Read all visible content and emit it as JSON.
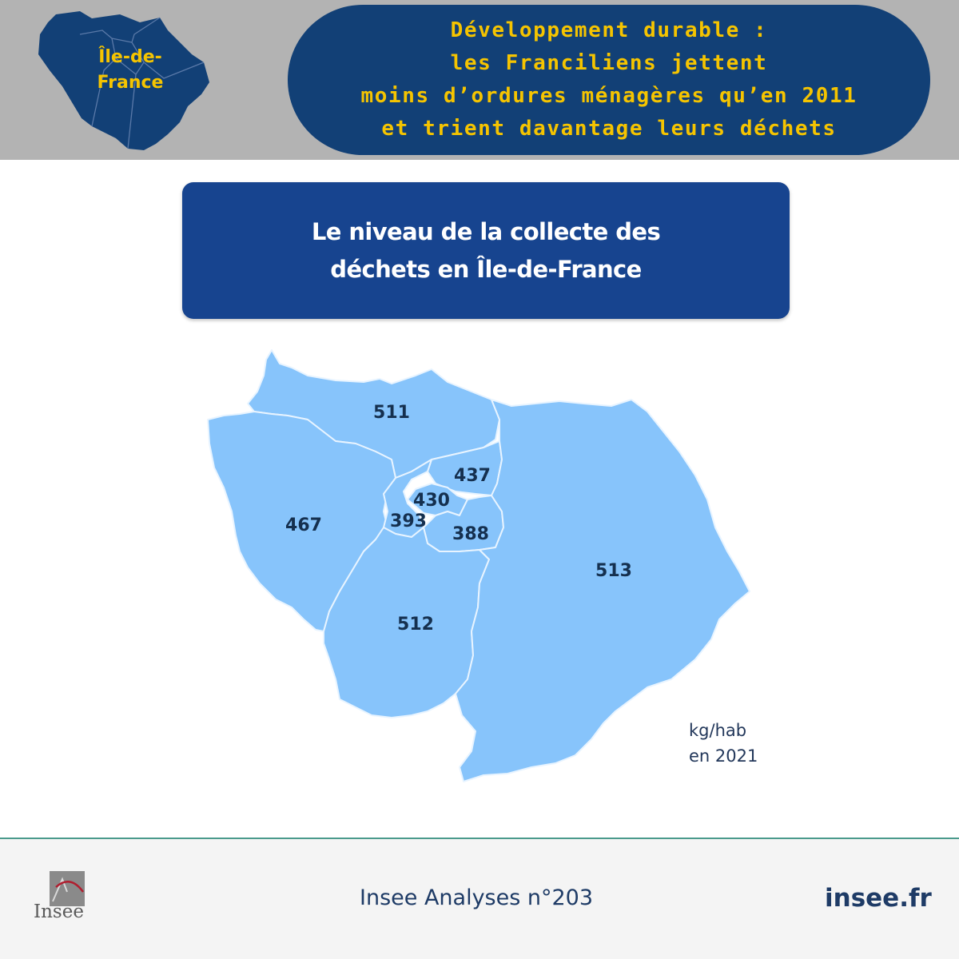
{
  "header": {
    "region_label_lines": [
      "Île-de-",
      "France"
    ],
    "headline_lines": [
      "Développement durable :",
      "les Franciliens jettent",
      "moins d’ordures ménagères qu’en 2011",
      "et trient davantage leurs déchets"
    ]
  },
  "panel": {
    "title_lines": [
      "Le niveau de la collecte des",
      "déchets en Île-de-France"
    ]
  },
  "map": {
    "unit_lines": [
      "kg/hab",
      "en 2021"
    ],
    "departments": [
      {
        "value": "511"
      },
      {
        "value": "467"
      },
      {
        "value": "437"
      },
      {
        "value": "430"
      },
      {
        "value": "393"
      },
      {
        "value": "388"
      },
      {
        "value": "512"
      },
      {
        "value": "513"
      }
    ],
    "fill_color": "#87c4fb",
    "border_color": "#e8f4ff",
    "label_color": "#15304f"
  },
  "footer": {
    "logo_text": "Insee",
    "publication": "Insee Analyses n°203",
    "site": "insee.fr"
  },
  "colors": {
    "header_band": "#b3b3b3",
    "headline_bg": "#124076",
    "headline_text": "#f5c400",
    "panel_bg": "#17448f"
  }
}
